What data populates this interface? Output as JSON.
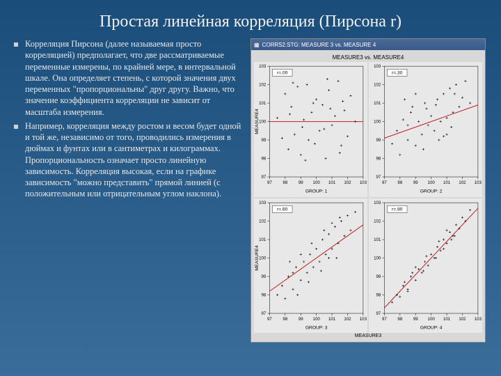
{
  "title": "Простая линейная корреляция (Пирсона r)",
  "bullets": [
    "Корреляция Пирсона (далее называемая просто корреляцией) предполагает, что две рассматриваемые переменные измерены, по крайней мере, в интервальной шкале. Она определяет степень, с которой значения двух переменных \"пропорциональны\" друг другу. Важно, что значение коэффициента корреляции не зависит от масштаба измерения.",
    "Например, корреляция между ростом и весом будет одной и той же, независимо от того, проводились измерения в дюймах и фунтах или в сантиметрах и килограммах. Пропорциональность означает просто линейную зависимость. Корреляция высокая, если на графике зависимость \"можно представить\" прямой линией (с положительным или отрицательным углом наклона)."
  ],
  "window": {
    "title": "CORRS2.STG: MEASURE 3 vs. MEASURE 4"
  },
  "chart": {
    "header": "MEASURE3 vs. MEASURE4",
    "y_axis_label": "MEASURE4",
    "x_axis_label": "MEASURE3",
    "plot_bg": "#e8e8e8",
    "axis_color": "#000000",
    "point_color": "#000000",
    "line_color": "#c02020",
    "xlim": [
      97,
      103
    ],
    "ylim": [
      97,
      103
    ],
    "xticks": [
      97,
      98,
      99,
      100,
      101,
      102,
      103
    ],
    "yticks": [
      97,
      98,
      99,
      100,
      101,
      102,
      103
    ],
    "subplots": [
      {
        "r_label": "r=.00",
        "group_label": "GROUP: 1",
        "slope": 0.0,
        "points": [
          [
            97.5,
            100.2
          ],
          [
            97.8,
            99.1
          ],
          [
            98.0,
            101.5
          ],
          [
            98.2,
            98.5
          ],
          [
            98.4,
            100.8
          ],
          [
            98.6,
            99.3
          ],
          [
            98.8,
            101.9
          ],
          [
            99.0,
            98.2
          ],
          [
            99.2,
            100.1
          ],
          [
            99.4,
            102.0
          ],
          [
            99.5,
            99.0
          ],
          [
            99.7,
            100.5
          ],
          [
            99.9,
            98.8
          ],
          [
            100.0,
            101.2
          ],
          [
            100.2,
            99.5
          ],
          [
            100.4,
            100.9
          ],
          [
            100.6,
            98.0
          ],
          [
            100.8,
            101.7
          ],
          [
            101.0,
            99.8
          ],
          [
            101.2,
            100.3
          ],
          [
            101.4,
            102.2
          ],
          [
            101.6,
            98.7
          ],
          [
            101.8,
            100.6
          ],
          [
            102.0,
            99.2
          ],
          [
            102.2,
            101.4
          ],
          [
            102.5,
            100.0
          ],
          [
            98.5,
            102.1
          ],
          [
            99.3,
            97.9
          ],
          [
            100.7,
            102.3
          ],
          [
            101.5,
            98.3
          ],
          [
            99.8,
            101.0
          ],
          [
            100.5,
            99.6
          ],
          [
            98.3,
            100.4
          ],
          [
            101.7,
            101.1
          ],
          [
            99.1,
            99.7
          ],
          [
            100.9,
            100.7
          ]
        ]
      },
      {
        "r_label": "r=.30",
        "group_label": "GROUP: 2",
        "slope": 0.3,
        "points": [
          [
            97.5,
            98.8
          ],
          [
            97.8,
            99.5
          ],
          [
            98.0,
            98.2
          ],
          [
            98.2,
            100.1
          ],
          [
            98.5,
            99.0
          ],
          [
            98.7,
            100.5
          ],
          [
            99.0,
            98.7
          ],
          [
            99.2,
            100.0
          ],
          [
            99.4,
            99.3
          ],
          [
            99.6,
            101.0
          ],
          [
            99.8,
            99.8
          ],
          [
            100.0,
            100.3
          ],
          [
            100.2,
            99.5
          ],
          [
            100.4,
            101.2
          ],
          [
            100.6,
            100.0
          ],
          [
            100.8,
            101.5
          ],
          [
            101.0,
            100.2
          ],
          [
            101.2,
            101.8
          ],
          [
            101.4,
            100.5
          ],
          [
            101.6,
            102.0
          ],
          [
            101.8,
            100.8
          ],
          [
            102.0,
            101.3
          ],
          [
            102.2,
            102.2
          ],
          [
            102.5,
            101.0
          ],
          [
            98.3,
            101.2
          ],
          [
            99.5,
            98.5
          ],
          [
            100.5,
            99.0
          ],
          [
            101.3,
            99.7
          ],
          [
            99.0,
            101.5
          ],
          [
            100.8,
            99.2
          ],
          [
            98.8,
            100.8
          ],
          [
            101.5,
            101.5
          ],
          [
            99.7,
            100.7
          ],
          [
            100.3,
            100.9
          ],
          [
            101.0,
            99.3
          ],
          [
            98.5,
            99.8
          ]
        ]
      },
      {
        "r_label": "r=.60",
        "group_label": "GROUP: 3",
        "slope": 0.6,
        "points": [
          [
            97.5,
            98.0
          ],
          [
            97.8,
            98.5
          ],
          [
            98.0,
            97.8
          ],
          [
            98.2,
            99.0
          ],
          [
            98.5,
            98.3
          ],
          [
            98.7,
            99.5
          ],
          [
            99.0,
            98.8
          ],
          [
            99.2,
            99.8
          ],
          [
            99.4,
            99.2
          ],
          [
            99.6,
            100.2
          ],
          [
            99.8,
            99.5
          ],
          [
            100.0,
            100.5
          ],
          [
            100.2,
            99.8
          ],
          [
            100.4,
            101.0
          ],
          [
            100.6,
            100.2
          ],
          [
            100.8,
            101.3
          ],
          [
            101.0,
            100.5
          ],
          [
            101.2,
            101.7
          ],
          [
            101.4,
            100.8
          ],
          [
            101.6,
            102.0
          ],
          [
            101.8,
            101.2
          ],
          [
            102.0,
            102.3
          ],
          [
            102.2,
            101.5
          ],
          [
            102.5,
            102.5
          ],
          [
            98.3,
            99.8
          ],
          [
            99.5,
            98.7
          ],
          [
            100.5,
            101.5
          ],
          [
            101.3,
            100.0
          ],
          [
            99.0,
            100.2
          ],
          [
            100.8,
            100.0
          ],
          [
            98.8,
            98.0
          ],
          [
            101.5,
            102.2
          ],
          [
            99.7,
            100.8
          ],
          [
            100.3,
            99.3
          ],
          [
            101.0,
            101.9
          ],
          [
            98.5,
            99.2
          ]
        ]
      },
      {
        "r_label": "r=.90",
        "group_label": "GROUP: 4",
        "slope": 0.9,
        "points": [
          [
            97.5,
            97.6
          ],
          [
            97.8,
            98.0
          ],
          [
            98.0,
            97.9
          ],
          [
            98.2,
            98.5
          ],
          [
            98.5,
            98.3
          ],
          [
            98.7,
            99.0
          ],
          [
            99.0,
            98.8
          ],
          [
            99.2,
            99.4
          ],
          [
            99.4,
            99.2
          ],
          [
            99.6,
            99.8
          ],
          [
            99.8,
            99.6
          ],
          [
            100.0,
            100.2
          ],
          [
            100.2,
            100.0
          ],
          [
            100.4,
            100.6
          ],
          [
            100.6,
            100.4
          ],
          [
            100.8,
            101.0
          ],
          [
            101.0,
            100.8
          ],
          [
            101.2,
            101.4
          ],
          [
            101.4,
            101.2
          ],
          [
            101.6,
            101.8
          ],
          [
            101.8,
            101.6
          ],
          [
            102.0,
            102.2
          ],
          [
            102.2,
            102.0
          ],
          [
            102.5,
            102.6
          ],
          [
            98.3,
            98.7
          ],
          [
            99.5,
            99.3
          ],
          [
            100.5,
            100.9
          ],
          [
            101.3,
            101.0
          ],
          [
            99.0,
            99.5
          ],
          [
            100.8,
            100.5
          ],
          [
            98.8,
            99.2
          ],
          [
            101.5,
            101.2
          ],
          [
            99.7,
            100.1
          ],
          [
            100.3,
            100.0
          ],
          [
            101.0,
            101.5
          ],
          [
            98.5,
            98.2
          ]
        ]
      }
    ]
  }
}
